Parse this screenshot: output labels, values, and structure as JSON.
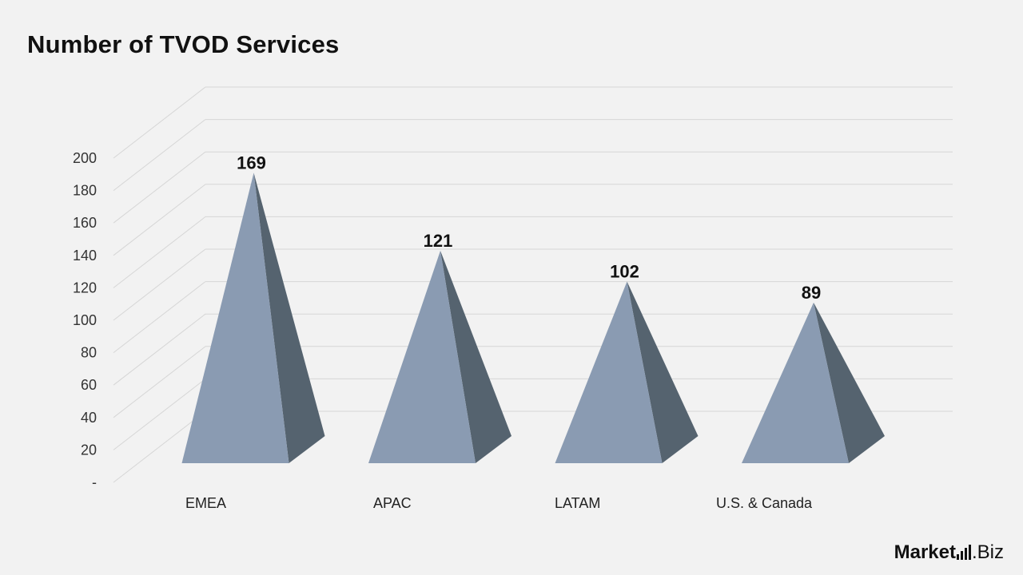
{
  "chart_data": {
    "type": "bar",
    "style": "3d-pyramid",
    "title": "Number of TVOD Services",
    "categories": [
      "EMEA",
      "APAC",
      "LATAM",
      "U.S. & Canada"
    ],
    "values": [
      169,
      121,
      102,
      89
    ],
    "ylim": [
      0,
      200
    ],
    "yticks": [
      "-",
      "20",
      "40",
      "60",
      "80",
      "100",
      "120",
      "140",
      "160",
      "180",
      "200"
    ],
    "grid": true,
    "legend": "none",
    "colors": {
      "front": "#8a9bb2",
      "side": "#55636f",
      "grid": "#d6d6d6"
    }
  },
  "logo": {
    "brand": "Market",
    "suffix": ".Biz"
  }
}
